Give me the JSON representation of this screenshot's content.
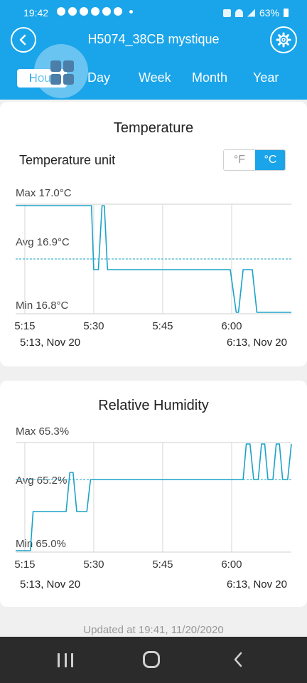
{
  "status_bar": {
    "time": "19:42",
    "battery": "63%"
  },
  "header": {
    "title": "H5074_38CB mystique"
  },
  "tabs": [
    {
      "label": "Hour",
      "active": true
    },
    {
      "label": "Day"
    },
    {
      "label": "Week"
    },
    {
      "label": "Month"
    },
    {
      "label": "Year"
    }
  ],
  "temperature": {
    "title": "Temperature",
    "unit_label": "Temperature unit",
    "unit_options": [
      "°F",
      "°C"
    ],
    "selected_unit": "°C",
    "max_label": "Max 17.0°C",
    "avg_label": "Avg 16.9°C",
    "min_label": "Min 16.8°C",
    "start_label": "5:13,  Nov 20",
    "end_label": "6:13,  Nov 20"
  },
  "humidity": {
    "title": "Relative Humidity",
    "max_label": "Max 65.3%",
    "avg_label": "Avg 65.2%",
    "min_label": "Min 65.0%",
    "start_label": "5:13,  Nov 20",
    "end_label": "6:13,  Nov 20"
  },
  "footer": {
    "updated": "Updated at 19:41,  11/20/2020"
  },
  "colors": {
    "accent": "#1aa5ea",
    "line": "#1aa3c8",
    "nav": "#2b2b2b"
  },
  "chart_data": [
    {
      "type": "line",
      "name": "temperature",
      "x_ticks": [
        "5:15",
        "5:30",
        "5:45",
        "6:00"
      ],
      "x_tick_minutes": [
        15,
        30,
        45,
        60
      ],
      "xlim_minutes": [
        13,
        73
      ],
      "ylim": [
        16.8,
        17.0
      ],
      "avg": 16.9,
      "points": [
        [
          13,
          17.0
        ],
        [
          29.5,
          17.0
        ],
        [
          30,
          16.88
        ],
        [
          31,
          16.88
        ],
        [
          31.8,
          17.0
        ],
        [
          32.3,
          17.0
        ],
        [
          33,
          16.88
        ],
        [
          59.7,
          16.88
        ],
        [
          61,
          16.8
        ],
        [
          61.5,
          16.8
        ],
        [
          62.5,
          16.88
        ],
        [
          64.5,
          16.88
        ],
        [
          65.5,
          16.8
        ],
        [
          73,
          16.8
        ]
      ]
    },
    {
      "type": "line",
      "name": "humidity",
      "x_ticks": [
        "5:15",
        "5:30",
        "5:45",
        "6:00"
      ],
      "x_tick_minutes": [
        15,
        30,
        45,
        60
      ],
      "xlim_minutes": [
        13,
        73
      ],
      "ylim": [
        65.0,
        65.3
      ],
      "avg": 65.2,
      "points": [
        [
          13,
          65.0
        ],
        [
          16.2,
          65.0
        ],
        [
          16.8,
          65.11
        ],
        [
          24,
          65.11
        ],
        [
          24.8,
          65.22
        ],
        [
          25.5,
          65.22
        ],
        [
          26.3,
          65.11
        ],
        [
          28.5,
          65.11
        ],
        [
          29.3,
          65.2
        ],
        [
          62.5,
          65.2
        ],
        [
          63.2,
          65.3
        ],
        [
          64,
          65.3
        ],
        [
          64.8,
          65.2
        ],
        [
          65.8,
          65.2
        ],
        [
          66.5,
          65.3
        ],
        [
          67.2,
          65.3
        ],
        [
          67.9,
          65.2
        ],
        [
          69,
          65.2
        ],
        [
          69.7,
          65.3
        ],
        [
          70.4,
          65.3
        ],
        [
          71.1,
          65.2
        ],
        [
          72.2,
          65.2
        ],
        [
          73,
          65.3
        ]
      ]
    }
  ]
}
